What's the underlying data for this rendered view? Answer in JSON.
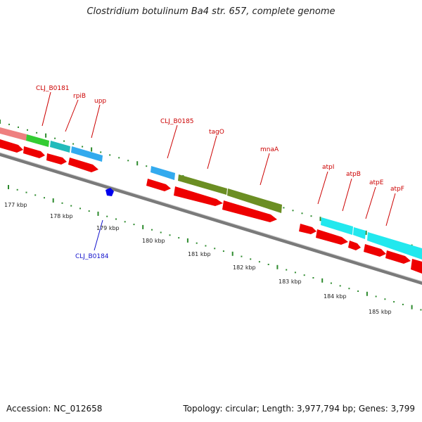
{
  "title": "Clostridium botulinum Ba4 str. 657, complete genome",
  "footer": {
    "accession": "Accession: NC_012658",
    "summary": "Topology: circular; Length: 3,977,794 bp; Genes: 3,799"
  },
  "colors": {
    "cds": "#ee0000",
    "backbone": "#808080",
    "ticks": "#2e8b2e",
    "label_red": "#cc0000",
    "label_blue": "#1111cc",
    "feature_pink": "#ee8080",
    "feature_green": "#33cc33",
    "feature_teal": "#22bbbb",
    "feature_blue": "#33aaee",
    "feature_olive": "#6b8e23",
    "feature_cyan": "#22e8ee"
  },
  "ticks": {
    "labels": [
      "177 kbp",
      "178 kbp",
      "179 kbp",
      "180 kbp",
      "181 kbp",
      "182 kbp",
      "183 kbp",
      "184 kbp",
      "185 kbp"
    ]
  },
  "genes": {
    "top_labels": [
      "CLJ_B0181",
      "rpiB",
      "upp",
      "CLJ_B0185",
      "tagO",
      "mnaA",
      "atpI",
      "atpB",
      "atpE",
      "atpF"
    ],
    "bottom_labels": [
      "CLJ_B0184"
    ]
  }
}
